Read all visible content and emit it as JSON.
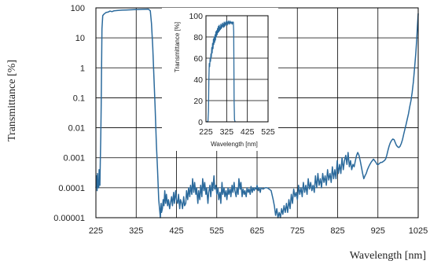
{
  "chart_data": [
    {
      "type": "line",
      "ylabel": "Transmittance [%]",
      "xlabel": "Wavelength [nm]",
      "xlim": [
        225,
        1025
      ],
      "ylim": [
        1e-05,
        100
      ],
      "yscale": "log",
      "grid": true,
      "x_ticks": [
        "225",
        "325",
        "425",
        "525",
        "625",
        "725",
        "825",
        "925",
        "1025"
      ],
      "y_ticks": [
        "100",
        "10",
        "1",
        "0.1",
        "0.01",
        "0.001",
        "0.0001",
        "0.00001"
      ],
      "color": "#2b6a9c",
      "points": [
        [
          225,
          0.0001
        ],
        [
          226,
          0.00012
        ],
        [
          227,
          0.00025
        ],
        [
          228,
          8e-05
        ],
        [
          229,
          0.0003
        ],
        [
          230,
          0.0001
        ],
        [
          231,
          0.00015
        ],
        [
          232,
          0.0001
        ],
        [
          233,
          0.0004
        ],
        [
          234,
          0.0002
        ],
        [
          235,
          0.00012
        ],
        [
          236,
          0.0008
        ],
        [
          237,
          0.005
        ],
        [
          238,
          0.05
        ],
        [
          239,
          1
        ],
        [
          240,
          20
        ],
        [
          242,
          55
        ],
        [
          245,
          62
        ],
        [
          250,
          70
        ],
        [
          255,
          72
        ],
        [
          260,
          78
        ],
        [
          265,
          75
        ],
        [
          270,
          80
        ],
        [
          280,
          82
        ],
        [
          290,
          84
        ],
        [
          300,
          85
        ],
        [
          310,
          86
        ],
        [
          320,
          87
        ],
        [
          330,
          88
        ],
        [
          340,
          89
        ],
        [
          350,
          90
        ],
        [
          355,
          91
        ],
        [
          360,
          80
        ],
        [
          363,
          30
        ],
        [
          366,
          5
        ],
        [
          369,
          0.5
        ],
        [
          372,
          0.05
        ],
        [
          375,
          0.003
        ],
        [
          378,
          0.0004
        ],
        [
          381,
          4e-05
        ],
        [
          385,
          1e-05
        ],
        [
          386,
          2e-05
        ],
        [
          387,
          3e-05
        ],
        [
          388,
          1.5e-05
        ],
        [
          390,
          2e-05
        ],
        [
          392,
          4e-05
        ],
        [
          394,
          2.5e-05
        ],
        [
          396,
          8e-05
        ],
        [
          398,
          3e-05
        ],
        [
          400,
          6e-05
        ],
        [
          403,
          2.5e-05
        ],
        [
          405,
          4e-05
        ],
        [
          408,
          2e-05
        ],
        [
          410,
          3e-05
        ],
        [
          413,
          5e-05
        ],
        [
          415,
          2.5e-05
        ],
        [
          418,
          7e-05
        ],
        [
          420,
          3e-05
        ],
        [
          423,
          8e-05
        ],
        [
          425,
          4e-05
        ],
        [
          428,
          3e-05
        ],
        [
          430,
          6e-05
        ],
        [
          433,
          2e-05
        ],
        [
          435,
          4e-05
        ],
        [
          438,
          3e-05
        ],
        [
          440,
          2e-05
        ],
        [
          443,
          5e-05
        ],
        [
          445,
          2.5e-05
        ],
        [
          448,
          3e-05
        ],
        [
          450,
          8e-05
        ],
        [
          453,
          4e-05
        ],
        [
          455,
          0.0001
        ],
        [
          458,
          5e-05
        ],
        [
          460,
          0.00012
        ],
        [
          463,
          6e-05
        ],
        [
          465,
          0.0002
        ],
        [
          468,
          7e-05
        ],
        [
          470,
          0.00015
        ],
        [
          473,
          6e-05
        ],
        [
          475,
          0.0001
        ],
        [
          478,
          3e-05
        ],
        [
          480,
          8e-05
        ],
        [
          483,
          4e-05
        ],
        [
          485,
          0.00012
        ],
        [
          488,
          5e-05
        ],
        [
          490,
          0.0002
        ],
        [
          493,
          8e-05
        ],
        [
          495,
          0.00015
        ],
        [
          498,
          6e-05
        ],
        [
          500,
          0.0001
        ],
        [
          503,
          3e-05
        ],
        [
          505,
          7e-05
        ],
        [
          508,
          0.00012
        ],
        [
          510,
          5e-05
        ],
        [
          513,
          0.00015
        ],
        [
          515,
          8e-05
        ],
        [
          518,
          0.00025
        ],
        [
          520,
          9e-05
        ],
        [
          523,
          0.00012
        ],
        [
          525,
          6e-05
        ],
        [
          528,
          0.0001
        ],
        [
          530,
          4e-05
        ],
        [
          533,
          7e-05
        ],
        [
          535,
          3e-05
        ],
        [
          538,
          0.00015
        ],
        [
          540,
          6e-05
        ],
        [
          543,
          0.0001
        ],
        [
          545,
          5e-05
        ],
        [
          548,
          8e-05
        ],
        [
          550,
          4e-05
        ],
        [
          553,
          0.0001
        ],
        [
          555,
          6e-05
        ],
        [
          558,
          9e-05
        ],
        [
          560,
          5e-05
        ],
        [
          563,
          0.00012
        ],
        [
          565,
          7e-05
        ],
        [
          568,
          0.00015
        ],
        [
          570,
          8e-05
        ],
        [
          573,
          5e-05
        ],
        [
          575,
          0.0001
        ],
        [
          578,
          6e-05
        ],
        [
          580,
          0.0002
        ],
        [
          583,
          9e-05
        ],
        [
          585,
          0.00015
        ],
        [
          588,
          5e-05
        ],
        [
          590,
          9e-05
        ],
        [
          593,
          6e-05
        ],
        [
          595,
          8e-05
        ],
        [
          598,
          5e-05
        ],
        [
          600,
          0.0001
        ],
        [
          603,
          7e-05
        ],
        [
          605,
          9e-05
        ],
        [
          608,
          6e-05
        ],
        [
          610,
          0.00011
        ],
        [
          613,
          7e-05
        ],
        [
          615,
          0.0001
        ],
        [
          618,
          8e-05
        ],
        [
          620,
          0.0001
        ],
        [
          623,
          9e-05
        ],
        [
          625,
          0.00012
        ],
        [
          628,
          8e-05
        ],
        [
          630,
          0.0001
        ],
        [
          633,
          7e-05
        ],
        [
          635,
          0.0001
        ],
        [
          640,
          9e-05
        ],
        [
          645,
          0.0001
        ],
        [
          650,
          0.0001
        ],
        [
          655,
          9e-05
        ],
        [
          660,
          8e-05
        ],
        [
          665,
          4e-05
        ],
        [
          668,
          2.5e-05
        ],
        [
          671,
          1.2e-05
        ],
        [
          674,
          2e-05
        ],
        [
          677,
          1e-05
        ],
        [
          680,
          1.5e-05
        ],
        [
          683,
          1e-05
        ],
        [
          686,
          2e-05
        ],
        [
          689,
          1.3e-05
        ],
        [
          692,
          2.5e-05
        ],
        [
          695,
          1.5e-05
        ],
        [
          698,
          3e-05
        ],
        [
          701,
          1.5e-05
        ],
        [
          704,
          4e-05
        ],
        [
          707,
          2e-05
        ],
        [
          710,
          6e-05
        ],
        [
          713,
          3e-05
        ],
        [
          716,
          9e-05
        ],
        [
          719,
          5e-05
        ],
        [
          722,
          7e-05
        ],
        [
          725,
          4e-05
        ],
        [
          728,
          0.00012
        ],
        [
          731,
          6e-05
        ],
        [
          734,
          0.0001
        ],
        [
          737,
          5e-05
        ],
        [
          740,
          0.00015
        ],
        [
          743,
          7e-05
        ],
        [
          746,
          0.00012
        ],
        [
          749,
          6e-05
        ],
        [
          752,
          0.0002
        ],
        [
          755,
          9e-05
        ],
        [
          758,
          0.00015
        ],
        [
          761,
          8e-05
        ],
        [
          764,
          0.00012
        ],
        [
          767,
          7e-05
        ],
        [
          770,
          0.00025
        ],
        [
          773,
          0.0001
        ],
        [
          776,
          0.0003
        ],
        [
          779,
          0.00012
        ],
        [
          782,
          0.0002
        ],
        [
          785,
          0.0001
        ],
        [
          788,
          0.0003
        ],
        [
          791,
          0.00015
        ],
        [
          794,
          0.00025
        ],
        [
          797,
          0.00012
        ],
        [
          800,
          0.0004
        ],
        [
          803,
          0.00018
        ],
        [
          806,
          0.0003
        ],
        [
          809,
          0.00015
        ],
        [
          812,
          0.0005
        ],
        [
          815,
          0.0002
        ],
        [
          818,
          0.0004
        ],
        [
          821,
          0.0002
        ],
        [
          824,
          0.0008
        ],
        [
          827,
          0.0003
        ],
        [
          830,
          0.0006
        ],
        [
          833,
          0.0003
        ],
        [
          836,
          0.001
        ],
        [
          839,
          0.0004
        ],
        [
          842,
          0.0008
        ],
        [
          845,
          0.0012
        ],
        [
          848,
          0.0006
        ],
        [
          851,
          0.0015
        ],
        [
          854,
          0.0005
        ],
        [
          857,
          0.0008
        ],
        [
          860,
          0.0004
        ],
        [
          863,
          0.0006
        ],
        [
          866,
          0.0005
        ],
        [
          869,
          0.0008
        ],
        [
          872,
          0.0012
        ],
        [
          875,
          0.0015
        ],
        [
          878,
          0.0012
        ],
        [
          881,
          0.0008
        ],
        [
          884,
          0.0005
        ],
        [
          887,
          0.0003
        ],
        [
          890,
          0.0002
        ],
        [
          893,
          0.00025
        ],
        [
          896,
          0.0003
        ],
        [
          899,
          0.0004
        ],
        [
          902,
          0.0005
        ],
        [
          905,
          0.0006
        ],
        [
          908,
          0.0007
        ],
        [
          911,
          0.0008
        ],
        [
          914,
          0.0009
        ],
        [
          917,
          0.0008
        ],
        [
          920,
          0.0007
        ],
        [
          923,
          0.0006
        ],
        [
          926,
          0.0006
        ],
        [
          929,
          0.00065
        ],
        [
          932,
          0.0007
        ],
        [
          935,
          0.0007
        ],
        [
          938,
          0.00075
        ],
        [
          941,
          0.0008
        ],
        [
          944,
          0.0009
        ],
        [
          947,
          0.0012
        ],
        [
          950,
          0.0018
        ],
        [
          953,
          0.0025
        ],
        [
          956,
          0.0032
        ],
        [
          959,
          0.0038
        ],
        [
          962,
          0.0042
        ],
        [
          965,
          0.004
        ],
        [
          968,
          0.0032
        ],
        [
          971,
          0.0026
        ],
        [
          974,
          0.0023
        ],
        [
          977,
          0.0022
        ],
        [
          980,
          0.0024
        ],
        [
          983,
          0.003
        ],
        [
          986,
          0.004
        ],
        [
          989,
          0.006
        ],
        [
          992,
          0.009
        ],
        [
          995,
          0.013
        ],
        [
          998,
          0.02
        ],
        [
          1001,
          0.03
        ],
        [
          1004,
          0.05
        ],
        [
          1007,
          0.08
        ],
        [
          1010,
          0.15
        ],
        [
          1013,
          0.35
        ],
        [
          1016,
          1
        ],
        [
          1019,
          3
        ],
        [
          1021,
          8
        ],
        [
          1023,
          25
        ],
        [
          1025,
          65
        ]
      ]
    },
    {
      "type": "line",
      "ylabel": "Transmittance [%]",
      "xlabel": "Wavelength [nm]",
      "xlim": [
        225,
        525
      ],
      "ylim": [
        0,
        100
      ],
      "grid": true,
      "x_ticks": [
        "225",
        "325",
        "425",
        "525"
      ],
      "y_ticks": [
        "100",
        "80",
        "60",
        "40",
        "20",
        "0"
      ],
      "color": "#2b6a9c",
      "points": [
        [
          228,
          0
        ],
        [
          232,
          0
        ],
        [
          235,
          1
        ],
        [
          237,
          10
        ],
        [
          239,
          40
        ],
        [
          241,
          55
        ],
        [
          243,
          52
        ],
        [
          245,
          60
        ],
        [
          247,
          57
        ],
        [
          249,
          64
        ],
        [
          251,
          61
        ],
        [
          253,
          70
        ],
        [
          255,
          65
        ],
        [
          257,
          74
        ],
        [
          259,
          69
        ],
        [
          261,
          78
        ],
        [
          263,
          73
        ],
        [
          265,
          80
        ],
        [
          267,
          75
        ],
        [
          269,
          82
        ],
        [
          271,
          77
        ],
        [
          273,
          85
        ],
        [
          275,
          80
        ],
        [
          277,
          86
        ],
        [
          279,
          82
        ],
        [
          281,
          88
        ],
        [
          283,
          84
        ],
        [
          285,
          90
        ],
        [
          287,
          85
        ],
        [
          289,
          91
        ],
        [
          291,
          86
        ],
        [
          293,
          89
        ],
        [
          295,
          87
        ],
        [
          297,
          92
        ],
        [
          299,
          88
        ],
        [
          301,
          91
        ],
        [
          303,
          89
        ],
        [
          305,
          93
        ],
        [
          307,
          90
        ],
        [
          309,
          92
        ],
        [
          311,
          89
        ],
        [
          313,
          94
        ],
        [
          315,
          90
        ],
        [
          317,
          93
        ],
        [
          319,
          91
        ],
        [
          321,
          94
        ],
        [
          323,
          92
        ],
        [
          325,
          95
        ],
        [
          327,
          91
        ],
        [
          329,
          94
        ],
        [
          331,
          92
        ],
        [
          333,
          95
        ],
        [
          335,
          93
        ],
        [
          337,
          94
        ],
        [
          339,
          92
        ],
        [
          341,
          95
        ],
        [
          343,
          93
        ],
        [
          345,
          94
        ],
        [
          347,
          93
        ],
        [
          349,
          94
        ],
        [
          351,
          92
        ],
        [
          353,
          94
        ],
        [
          355,
          93
        ],
        [
          357,
          94
        ],
        [
          359,
          85
        ],
        [
          361,
          20
        ],
        [
          363,
          2
        ],
        [
          366,
          0
        ]
      ]
    }
  ]
}
